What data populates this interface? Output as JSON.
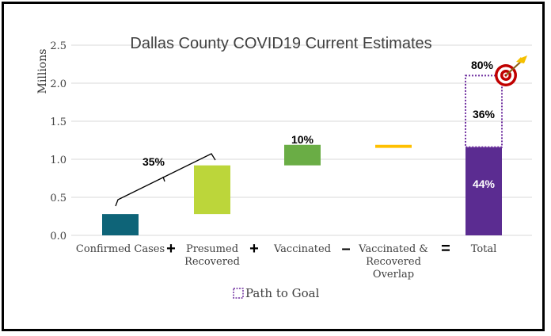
{
  "chart_data": {
    "type": "waterfall",
    "title": "Dallas County COVID19 Current Estimates",
    "ylabel": "Millions",
    "xlabel": "",
    "ylim": [
      0,
      2.5
    ],
    "yticks": [
      "0.0",
      "0.5",
      "1.0",
      "1.5",
      "2.0",
      "2.5"
    ],
    "grid": true,
    "categories": [
      "Confirmed Cases",
      "Presumed Recovered",
      "Vaccinated",
      "Vaccinated & Recovered Overlap",
      "Total"
    ],
    "category_lines": [
      [
        "Confirmed Cases"
      ],
      [
        "Presumed",
        "Recovered"
      ],
      [
        "Vaccinated"
      ],
      [
        "Vaccinated &",
        "Recovered",
        "Overlap"
      ],
      [
        "Total"
      ]
    ],
    "operators": [
      "+",
      "+",
      "-",
      "="
    ],
    "bars": [
      {
        "category": "Confirmed Cases",
        "base": 0.0,
        "top": 0.28,
        "color": "#0e6478"
      },
      {
        "category": "Presumed Recovered",
        "base": 0.28,
        "top": 0.92,
        "color": "#bcd63a"
      },
      {
        "category": "Vaccinated",
        "base": 0.92,
        "top": 1.19,
        "color": "#6aad45"
      },
      {
        "category": "Vaccinated & Recovered Overlap",
        "base": 1.15,
        "top": 1.19,
        "color": "#ffc000"
      },
      {
        "category": "Total",
        "base": 0.0,
        "top": 1.16,
        "color": "#5b2c91"
      }
    ],
    "path_to_goal": {
      "base": 1.16,
      "top": 2.1,
      "color": "#7030a0"
    },
    "annotations": {
      "bracket_label": "35%",
      "vaccinated_label": "10%",
      "goal_label": "80%",
      "gap_label": "36%",
      "total_label": "44%"
    },
    "legend": {
      "label": "Path to Goal",
      "placement": "bottom"
    },
    "target_icon": "target-with-arrow-icon"
  }
}
